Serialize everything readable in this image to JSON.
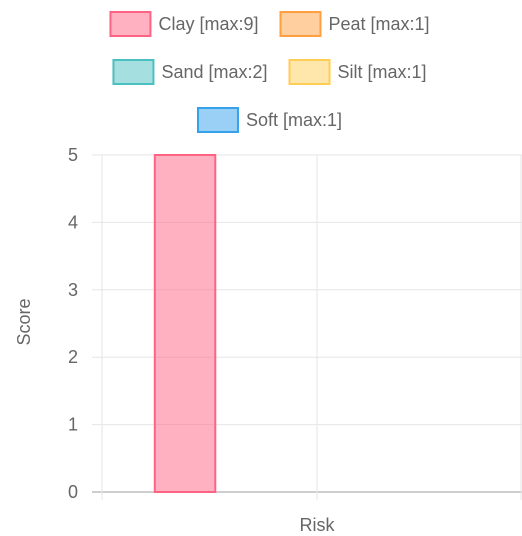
{
  "chart_data": {
    "type": "bar",
    "categories": [
      "Risk"
    ],
    "series": [
      {
        "name": "Clay [max:9]",
        "values": [
          5
        ],
        "color": "#ff6384",
        "fill": "rgba(255,99,132,0.5)"
      },
      {
        "name": "Peat [max:1]",
        "values": [
          0
        ],
        "color": "#ff9f40",
        "fill": "rgba(255,159,64,0.5)"
      },
      {
        "name": "Sand [max:2]",
        "values": [
          0
        ],
        "color": "#4bc0c0",
        "fill": "rgba(75,192,192,0.5)"
      },
      {
        "name": "Silt [max:1]",
        "values": [
          0
        ],
        "color": "#ffcd56",
        "fill": "rgba(255,205,86,0.5)"
      },
      {
        "name": "Soft [max:1]",
        "values": [
          0
        ],
        "color": "#36a2eb",
        "fill": "rgba(54,162,235,0.5)"
      }
    ],
    "xlabel": "Risk",
    "ylabel": "Score",
    "ylim": [
      0,
      5
    ],
    "yticks": [
      "0",
      "1",
      "2",
      "3",
      "4",
      "5"
    ],
    "grid": true,
    "legend_position": "top"
  }
}
